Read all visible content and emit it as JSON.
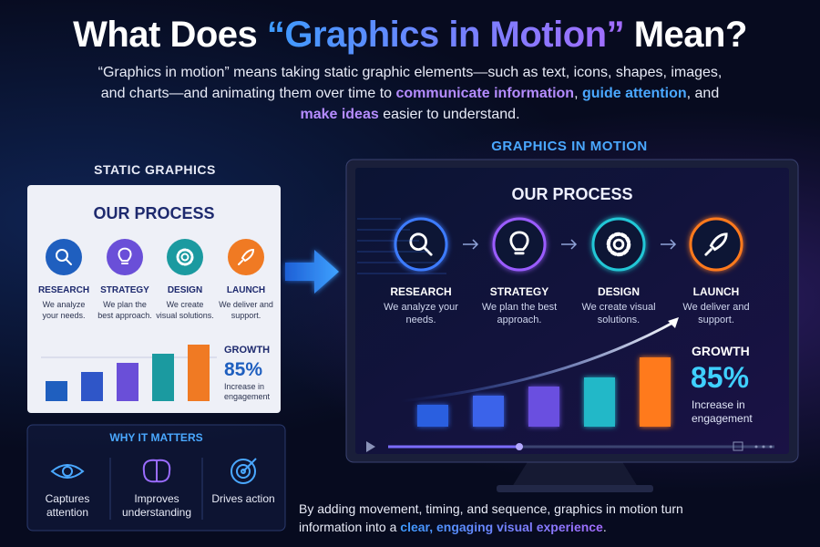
{
  "header": {
    "title_parts": [
      "What Does ",
      "“Graphics in Motion”",
      " Mean?"
    ],
    "intro_parts": [
      "“Graphics in motion” means taking static graphic elements—such as text, icons, shapes, images, and charts—and animating them over time to ",
      "communicate information",
      ", ",
      "guide attention",
      ", and ",
      "make ideas",
      " easier to understand."
    ]
  },
  "static_panel": {
    "label": "STATIC GRAPHICS",
    "title": "OUR PROCESS",
    "steps": [
      {
        "title": "RESEARCH",
        "desc": "We analyze your needs."
      },
      {
        "title": "STRATEGY",
        "desc": "We plan the best approach."
      },
      {
        "title": "DESIGN",
        "desc": "We create visual solutions."
      },
      {
        "title": "LAUNCH",
        "desc": "We deliver and support."
      }
    ],
    "growth": {
      "label": "GROWTH",
      "value": "85%",
      "desc": "Increase in engagement"
    }
  },
  "motion_panel": {
    "label": "GRAPHICS IN MOTION",
    "title": "OUR PROCESS",
    "steps": [
      {
        "title": "RESEARCH",
        "desc": "We analyze your needs."
      },
      {
        "title": "STRATEGY",
        "desc": "We plan the best approach."
      },
      {
        "title": "DESIGN",
        "desc": "We create visual solutions."
      },
      {
        "title": "LAUNCH",
        "desc": "We deliver and support."
      }
    ],
    "growth": {
      "label": "GROWTH",
      "value": "85%",
      "desc": "Increase in engagement"
    }
  },
  "why_it_matters": {
    "title": "WHY IT MATTERS",
    "items": [
      "Captures attention",
      "Improves understanding",
      "Drives action"
    ]
  },
  "footer": {
    "parts": [
      "By adding movement, timing, and sequence, graphics in motion turn information into a ",
      "clear, engaging visual experience",
      "."
    ]
  }
}
